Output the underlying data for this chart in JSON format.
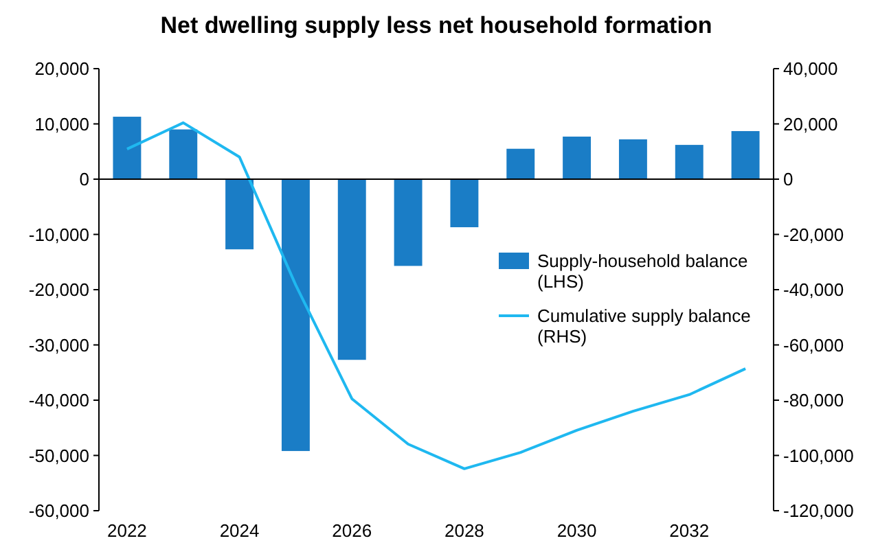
{
  "chart_data": {
    "type": "bar",
    "title": "Net dwelling supply less net household formation",
    "categories": [
      "2022",
      null,
      "2024",
      null,
      "2026",
      null,
      "2028",
      null,
      "2030",
      null,
      "2032",
      null
    ],
    "series": [
      {
        "name": "Supply-household balance (LHS)",
        "color": "#1a7dc6",
        "values": [
          11300,
          9000,
          -12700,
          -49200,
          -32700,
          -15700,
          -8700,
          5500,
          7700,
          7200,
          6200,
          8700
        ]
      },
      {
        "name": "Cumulative supply balance (RHS)",
        "type": "line",
        "axis": "y2",
        "color": "#1fb8f0",
        "values": [
          10900,
          20400,
          8000,
          -38300,
          -79500,
          -95900,
          -104800,
          -98900,
          -90900,
          -84000,
          -78000,
          -68600
        ]
      }
    ],
    "ylim": [
      -60000,
      20000
    ],
    "yticks": [
      {
        "value": -60000,
        "label": "-60,000"
      },
      {
        "value": -50000,
        "label": "-50,000"
      },
      {
        "value": -40000,
        "label": "-40,000"
      },
      {
        "value": -30000,
        "label": "-30,000"
      },
      {
        "value": -20000,
        "label": "-20,000"
      },
      {
        "value": -10000,
        "label": "-10,000"
      },
      0,
      {
        "value": 10000,
        "label": "10,000"
      },
      {
        "value": 20000,
        "label": "20,000"
      }
    ],
    "y2lim": [
      -120000,
      40000
    ],
    "y2ticks": [
      {
        "value": -120000,
        "label": "-120,000"
      },
      {
        "value": -100000,
        "label": "-100,000"
      },
      {
        "value": -80000,
        "label": "-80,000"
      },
      {
        "value": -60000,
        "label": "-60,000"
      },
      {
        "value": -40000,
        "label": "-40,000"
      },
      {
        "value": -20000,
        "label": "-20,000"
      },
      0,
      {
        "value": 20000,
        "label": "20,000"
      },
      {
        "value": 40000,
        "label": "40,000"
      }
    ],
    "legend": "right",
    "marker": "none",
    "line_style": "solid"
  }
}
